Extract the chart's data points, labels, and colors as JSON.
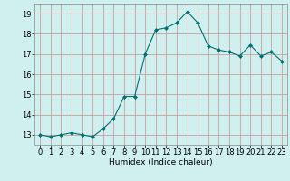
{
  "x": [
    0,
    1,
    2,
    3,
    4,
    5,
    6,
    7,
    8,
    9,
    10,
    11,
    12,
    13,
    14,
    15,
    16,
    17,
    18,
    19,
    20,
    21,
    22,
    23
  ],
  "y": [
    13.0,
    12.9,
    13.0,
    13.1,
    13.0,
    12.9,
    13.3,
    13.8,
    14.9,
    14.9,
    17.0,
    18.2,
    18.3,
    18.55,
    19.1,
    18.55,
    17.4,
    17.2,
    17.1,
    16.9,
    17.45,
    16.9,
    17.1,
    16.65
  ],
  "line_color": "#007070",
  "marker": "D",
  "marker_size": 2.0,
  "bg_color": "#d0f0f0",
  "grid_color": "#c8a0a0",
  "xlabel": "Humidex (Indice chaleur)",
  "xlim": [
    -0.5,
    23.5
  ],
  "ylim": [
    12.5,
    19.5
  ],
  "yticks": [
    13,
    14,
    15,
    16,
    17,
    18,
    19
  ],
  "xticks": [
    0,
    1,
    2,
    3,
    4,
    5,
    6,
    7,
    8,
    9,
    10,
    11,
    12,
    13,
    14,
    15,
    16,
    17,
    18,
    19,
    20,
    21,
    22,
    23
  ],
  "axis_fontsize": 6.5,
  "tick_fontsize": 6.0
}
